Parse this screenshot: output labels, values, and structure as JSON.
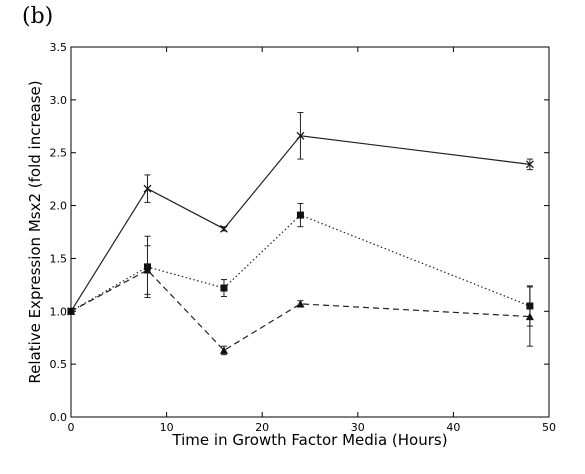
{
  "panel_label": "(b)",
  "chart_data": {
    "type": "line",
    "title": "",
    "xlabel": "Time in Growth Factor Media (Hours)",
    "ylabel": "Relative Expression Msx2 (fold increase)",
    "xlim": [
      0,
      50
    ],
    "ylim": [
      0,
      3.5
    ],
    "xticks": [
      "0",
      "10",
      "20",
      "30",
      "40",
      "50"
    ],
    "yticks": [
      "0.0",
      "0.5",
      "1.0",
      "1.5",
      "2.0",
      "2.5",
      "3.0",
      "3.5"
    ],
    "grid": false,
    "legend": "none",
    "x": [
      0,
      8,
      16,
      24,
      48
    ],
    "series": [
      {
        "marker": "x",
        "linestyle": "solid",
        "values": [
          1.0,
          2.16,
          1.78,
          2.66,
          2.39
        ],
        "errors": [
          0.0,
          0.13,
          0.02,
          0.22,
          0.05
        ]
      },
      {
        "marker": "square",
        "linestyle": "dotted",
        "values": [
          1.0,
          1.42,
          1.22,
          1.91,
          1.05
        ],
        "errors": [
          0.0,
          0.29,
          0.08,
          0.11,
          0.19
        ]
      },
      {
        "marker": "triangle",
        "linestyle": "dashed",
        "values": [
          1.0,
          1.39,
          0.63,
          1.07,
          0.95
        ],
        "errors": [
          0.0,
          0.23,
          0.04,
          0.03,
          0.28
        ]
      }
    ]
  }
}
